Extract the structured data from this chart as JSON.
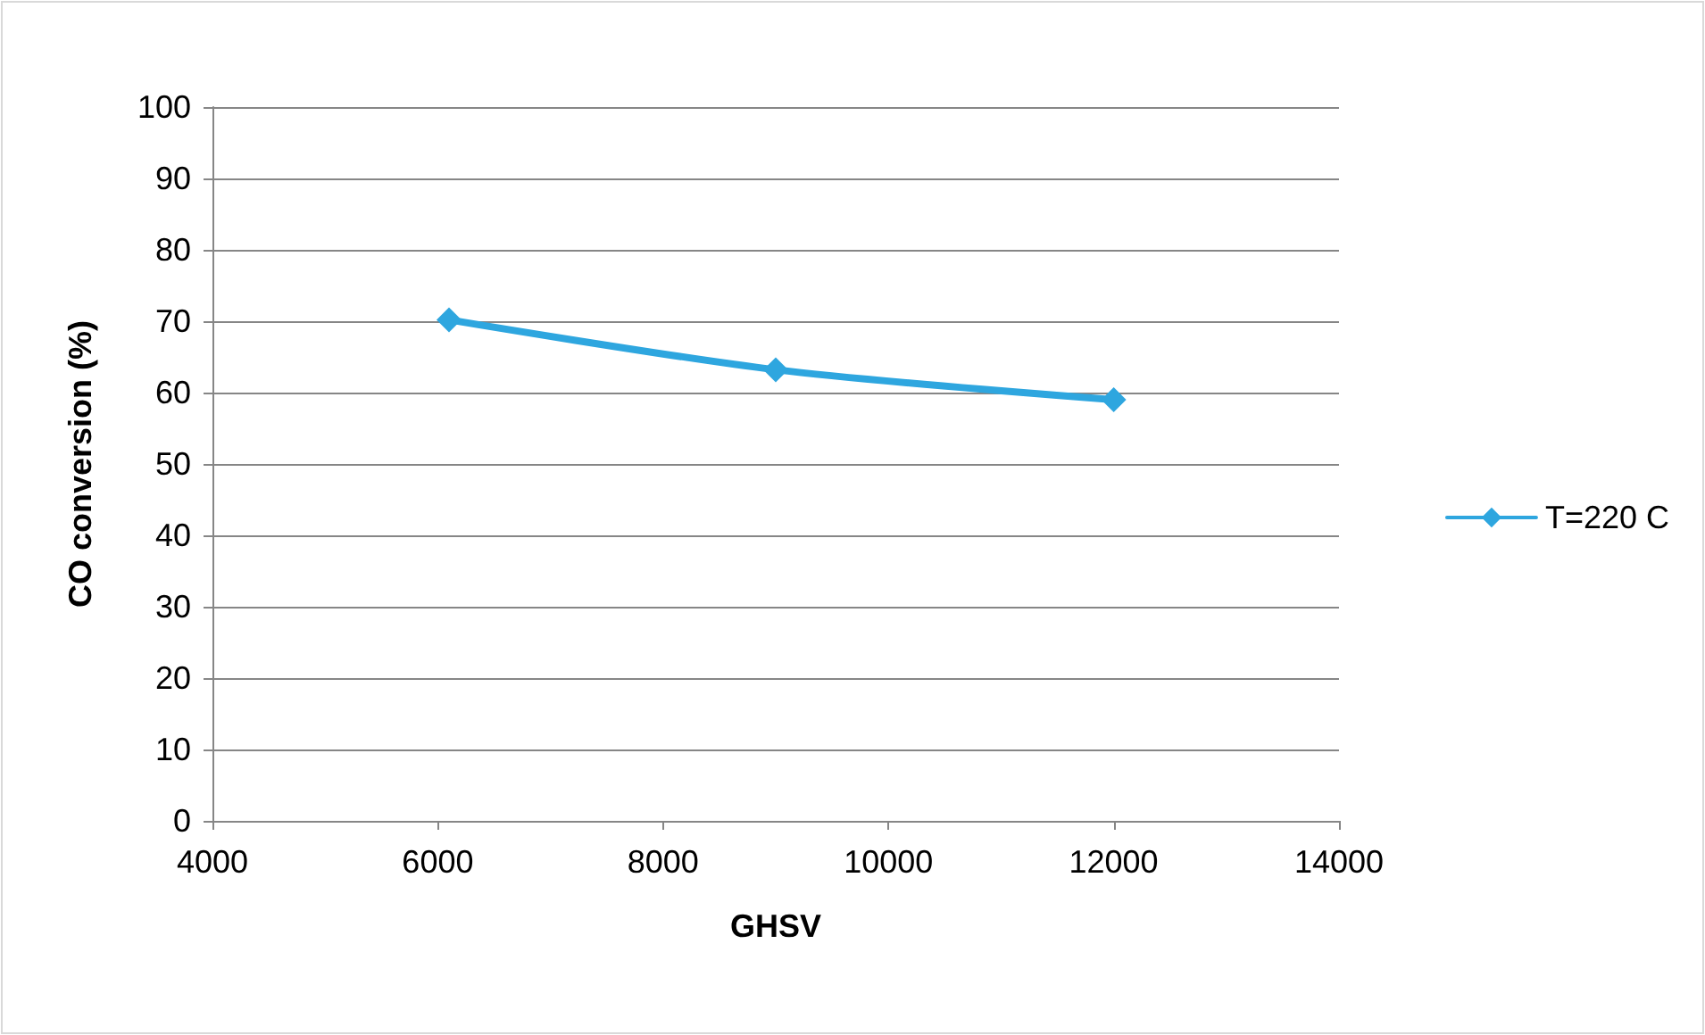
{
  "chart_data": {
    "type": "line",
    "xlabel": "GHSV",
    "ylabel": "CO conversion (%)",
    "x": [
      6100,
      9000,
      12000
    ],
    "series": [
      {
        "name": "T=220 C",
        "color": "#2ea6df",
        "values": [
          70.2,
          63.2,
          59
        ]
      }
    ],
    "xlim": [
      4000,
      14000
    ],
    "xticks": [
      4000,
      6000,
      8000,
      10000,
      12000,
      14000
    ],
    "ylim": [
      0,
      100
    ],
    "yticks": [
      0,
      10,
      20,
      30,
      40,
      50,
      60,
      70,
      80,
      90,
      100
    ],
    "grid": "y",
    "legend": "right",
    "marker": "diamond",
    "line_style": "solid"
  }
}
